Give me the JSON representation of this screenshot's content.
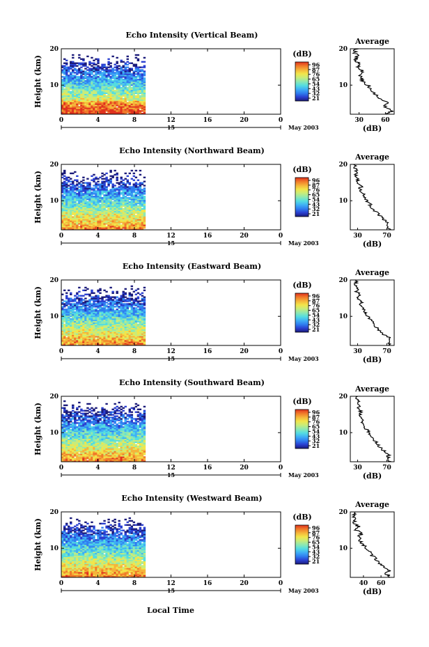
{
  "figure": {
    "xlabel": "Local Time",
    "colorbar_unit": "(dB)",
    "colorbar_ticks": [
      "96",
      "87",
      "76",
      "65",
      "54",
      "43",
      "32",
      "21"
    ],
    "colormap": [
      "#1b1b7a",
      "#2a3fd0",
      "#2f7ef0",
      "#3fb0f5",
      "#55dde0",
      "#8fe8b0",
      "#c8ec7a",
      "#f2e54a",
      "#f5b43a",
      "#f07a2a",
      "#e0321e"
    ]
  },
  "chart_data": [
    {
      "type": "heatmap",
      "title": "Echo Intensity (Vertical Beam)",
      "ylabel": "Height (km)",
      "xlim": [
        0,
        24
      ],
      "ylim": [
        2,
        20
      ],
      "xticks": [
        "0",
        "4",
        "8",
        "12",
        "16",
        "20",
        "0"
      ],
      "yticks": [
        "10",
        "20"
      ],
      "day_label": "15",
      "month_label": "May 2003",
      "data_coverage_hours": [
        0,
        9.2
      ],
      "colorbar": {
        "unit": "(dB)",
        "ticks": [
          "96",
          "87",
          "76",
          "65",
          "54",
          "43",
          "32",
          "21"
        ]
      },
      "profile": {
        "title": "Average",
        "xlabel": "(dB)",
        "xticks": [
          "30",
          "60"
        ],
        "xlim": [
          20,
          70
        ],
        "heights": [
          2,
          3,
          4,
          5,
          6,
          7,
          8,
          9,
          10,
          11,
          12,
          13,
          14,
          15,
          16,
          17,
          18,
          19,
          20
        ],
        "values": [
          62,
          68,
          58,
          63,
          55,
          52,
          46,
          44,
          40,
          35,
          32,
          30,
          34,
          28,
          30,
          26,
          28,
          25,
          27
        ]
      }
    },
    {
      "type": "heatmap",
      "title": "Echo Intensity (Northward Beam)",
      "ylabel": "Height (km)",
      "xlim": [
        0,
        24
      ],
      "ylim": [
        2,
        20
      ],
      "xticks": [
        "0",
        "4",
        "8",
        "12",
        "16",
        "20",
        "0"
      ],
      "yticks": [
        "10",
        "20"
      ],
      "day_label": "15",
      "month_label": "May 2003",
      "data_coverage_hours": [
        0,
        9.2
      ],
      "colorbar": {
        "unit": "(dB)",
        "ticks": [
          "96",
          "87",
          "76",
          "65",
          "54",
          "43",
          "32",
          "21"
        ]
      },
      "profile": {
        "title": "Average",
        "xlabel": "(dB)",
        "xticks": [
          "30",
          "70"
        ],
        "xlim": [
          20,
          80
        ],
        "heights": [
          2,
          3,
          4,
          5,
          6,
          7,
          8,
          9,
          10,
          11,
          12,
          13,
          14,
          15,
          16,
          17,
          18,
          19,
          20
        ],
        "values": [
          74,
          70,
          72,
          64,
          60,
          55,
          50,
          47,
          43,
          40,
          37,
          33,
          35,
          30,
          31,
          28,
          29,
          26,
          27
        ]
      }
    },
    {
      "type": "heatmap",
      "title": "Echo Intensity (Eastward Beam)",
      "ylabel": "Height (km)",
      "xlim": [
        0,
        24
      ],
      "ylim": [
        2,
        20
      ],
      "xticks": [
        "0",
        "4",
        "8",
        "12",
        "16",
        "20",
        "0"
      ],
      "yticks": [
        "10",
        "20"
      ],
      "day_label": "15",
      "month_label": "May 2003",
      "data_coverage_hours": [
        0,
        9.2
      ],
      "colorbar": {
        "unit": "(dB)",
        "ticks": [
          "96",
          "87",
          "76",
          "65",
          "54",
          "43",
          "32",
          "21"
        ]
      },
      "profile": {
        "title": "Average",
        "xlabel": "(dB)",
        "xticks": [
          "30",
          "70"
        ],
        "xlim": [
          20,
          80
        ],
        "heights": [
          2,
          3,
          4,
          5,
          6,
          7,
          8,
          9,
          10,
          11,
          12,
          13,
          14,
          15,
          16,
          17,
          18,
          19,
          20
        ],
        "values": [
          75,
          72,
          74,
          66,
          60,
          56,
          52,
          48,
          44,
          40,
          37,
          33,
          36,
          30,
          32,
          28,
          30,
          27,
          28
        ]
      }
    },
    {
      "type": "heatmap",
      "title": "Echo Intensity (Southward Beam)",
      "ylabel": "Height (km)",
      "xlim": [
        0,
        24
      ],
      "ylim": [
        2,
        20
      ],
      "xticks": [
        "0",
        "4",
        "8",
        "12",
        "16",
        "20",
        "0"
      ],
      "yticks": [
        "10",
        "20"
      ],
      "day_label": "15",
      "month_label": "May 2003",
      "data_coverage_hours": [
        0,
        9.2
      ],
      "colorbar": {
        "unit": "(dB)",
        "ticks": [
          "96",
          "87",
          "76",
          "65",
          "54",
          "43",
          "32",
          "21"
        ]
      },
      "profile": {
        "title": "Average",
        "xlabel": "(dB)",
        "xticks": [
          "30",
          "70"
        ],
        "xlim": [
          20,
          80
        ],
        "heights": [
          2,
          3,
          4,
          5,
          6,
          7,
          8,
          9,
          10,
          11,
          12,
          13,
          14,
          15,
          16,
          17,
          18,
          19,
          20
        ],
        "values": [
          74,
          71,
          73,
          66,
          60,
          57,
          53,
          50,
          46,
          42,
          39,
          35,
          36,
          33,
          34,
          31,
          32,
          29,
          30
        ]
      }
    },
    {
      "type": "heatmap",
      "title": "Echo Intensity (Westward Beam)",
      "ylabel": "Height (km)",
      "xlim": [
        0,
        24
      ],
      "ylim": [
        2,
        20
      ],
      "xticks": [
        "0",
        "4",
        "8",
        "12",
        "16",
        "20",
        "0"
      ],
      "yticks": [
        "10",
        "20"
      ],
      "day_label": "15",
      "month_label": "May 2003",
      "data_coverage_hours": [
        0,
        9.2
      ],
      "colorbar": {
        "unit": "(dB)",
        "ticks": [
          "96",
          "87",
          "76",
          "65",
          "54",
          "43",
          "32",
          "21"
        ]
      },
      "profile": {
        "title": "Average",
        "xlabel": "(dB)",
        "xticks": [
          "40",
          "60"
        ],
        "xlim": [
          25,
          75
        ],
        "heights": [
          2,
          3,
          4,
          5,
          6,
          7,
          8,
          9,
          10,
          11,
          12,
          13,
          14,
          15,
          16,
          17,
          18,
          19,
          20
        ],
        "values": [
          72,
          66,
          70,
          62,
          58,
          55,
          50,
          47,
          43,
          40,
          37,
          34,
          38,
          32,
          34,
          30,
          31,
          29,
          30
        ]
      }
    }
  ]
}
